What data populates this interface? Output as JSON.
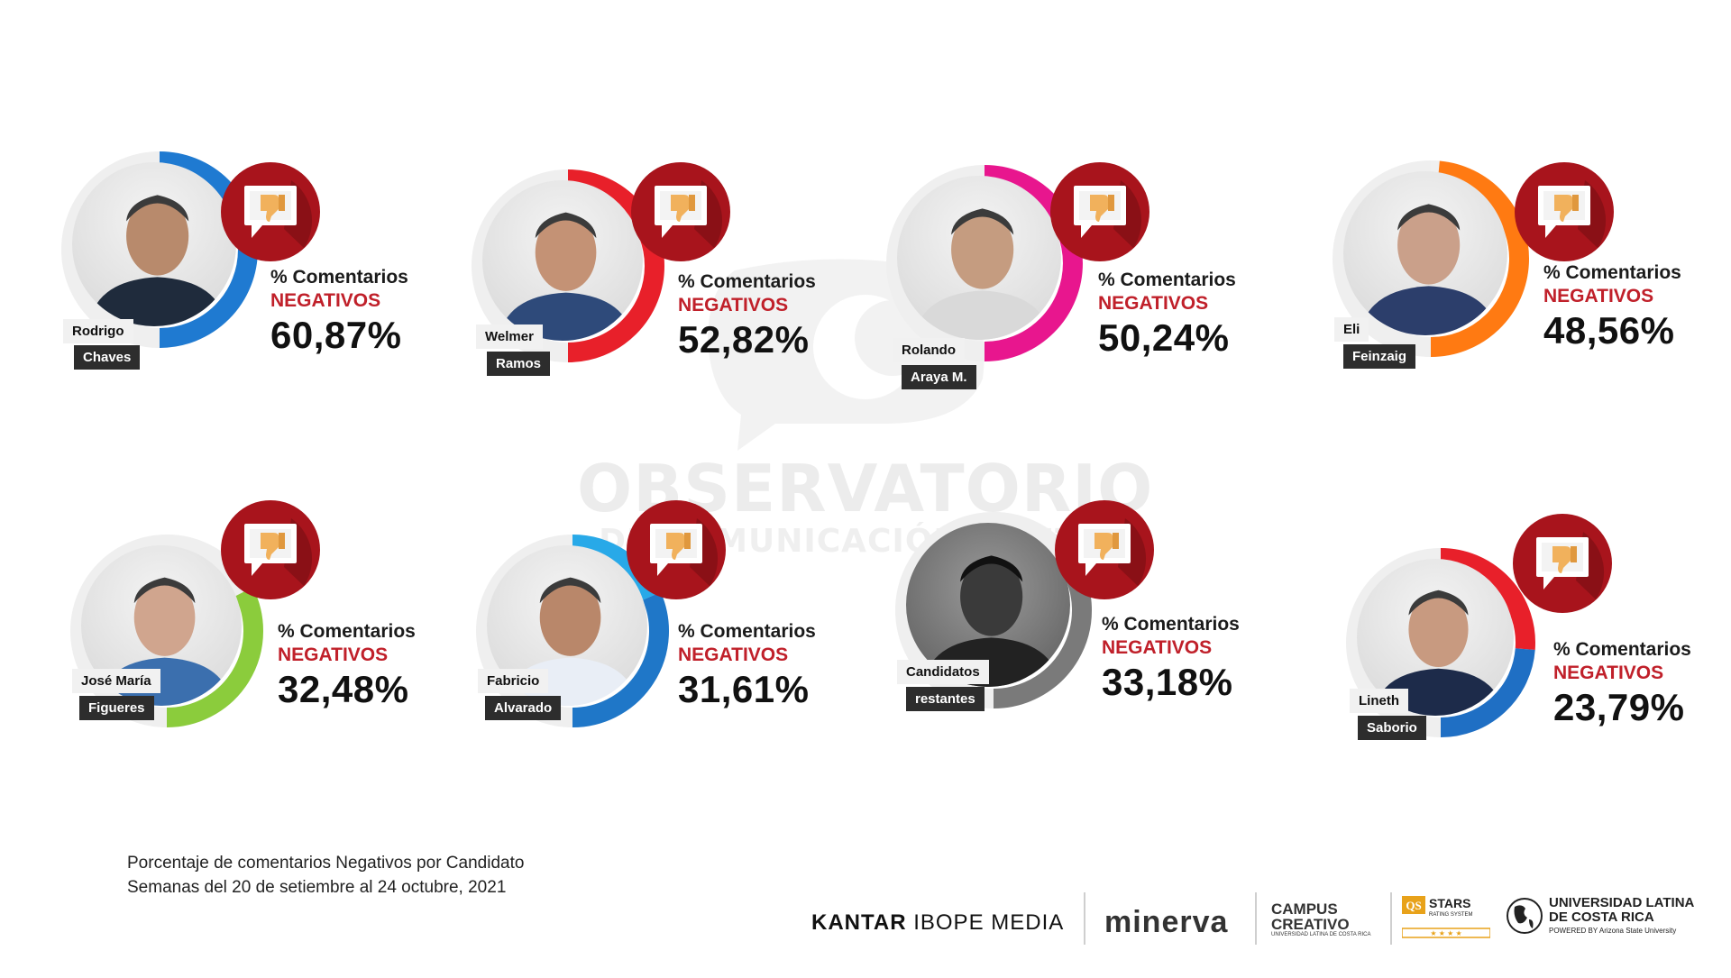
{
  "watermark": {
    "line1": "OBSERVATORIO",
    "line2": "DE COMUNICACIÓN DIGITAL"
  },
  "chart_data": {
    "type": "donut",
    "label_line1": "% Comentarios",
    "label_line2": "NEGATIVOS",
    "candidates": [
      {
        "first": "Rodrigo",
        "last": "Chaves",
        "value_text": "60,87%",
        "value": 60.87,
        "colors": [
          "#1f7ad1",
          "#2ad42a"
        ]
      },
      {
        "first": "Welmer",
        "last": "Ramos",
        "value_text": "52,82%",
        "value": 52.82,
        "colors": [
          "#e8202a",
          "#f5e11d"
        ]
      },
      {
        "first": "Rolando",
        "last": "Araya M.",
        "value_text": "50,24%",
        "value": 50.24,
        "colors": [
          "#e8168e",
          "#f0f0f0"
        ]
      },
      {
        "first": "Eli",
        "last": "Feinzaig",
        "value_text": "48,56%",
        "value": 48.56,
        "colors": [
          "#ff7a12",
          "#f0f0f0"
        ]
      },
      {
        "first": "José María",
        "last": "Figueres",
        "value_text": "32,48%",
        "value": 32.48,
        "colors": [
          "#8bcc3c",
          "#efefef"
        ]
      },
      {
        "first": "Fabricio",
        "last": "Alvarado",
        "value_text": "31,61%",
        "value": 31.61,
        "colors": [
          "#1f77c8",
          "#28a9e8"
        ]
      },
      {
        "first": "Candidatos",
        "last": "restantes",
        "value_text": "33,18%",
        "value": 33.18,
        "colors": [
          "#7a7a7a",
          "#efefef"
        ]
      },
      {
        "first": "Lineth",
        "last": "Saborio",
        "value_text": "23,79%",
        "value": 23.79,
        "colors": [
          "#1f6fc4",
          "#e8202a"
        ]
      }
    ]
  },
  "footnote": {
    "line1": "Porcentaje de comentarios Negativos por Candidato",
    "line2": "Semanas del 20 de setiembre al 24 octubre, 2021"
  },
  "logos": {
    "kantar_bold": "KANTAR",
    "kantar_rest": " IBOPE MEDIA",
    "minerva": "minerva",
    "campus_1": "CAMPUS",
    "campus_2": "CREATIVO",
    "campus_sub": "UNIVERSIDAD LATINA DE COSTA RICA",
    "qs": "QS",
    "stars": "STARS",
    "stars_sub": "RATING SYSTEM",
    "ulat_1": "UNIVERSIDAD LATINA",
    "ulat_2": "DE COSTA RICA",
    "ulat_sub": "POWERED BY Arizona State University"
  }
}
